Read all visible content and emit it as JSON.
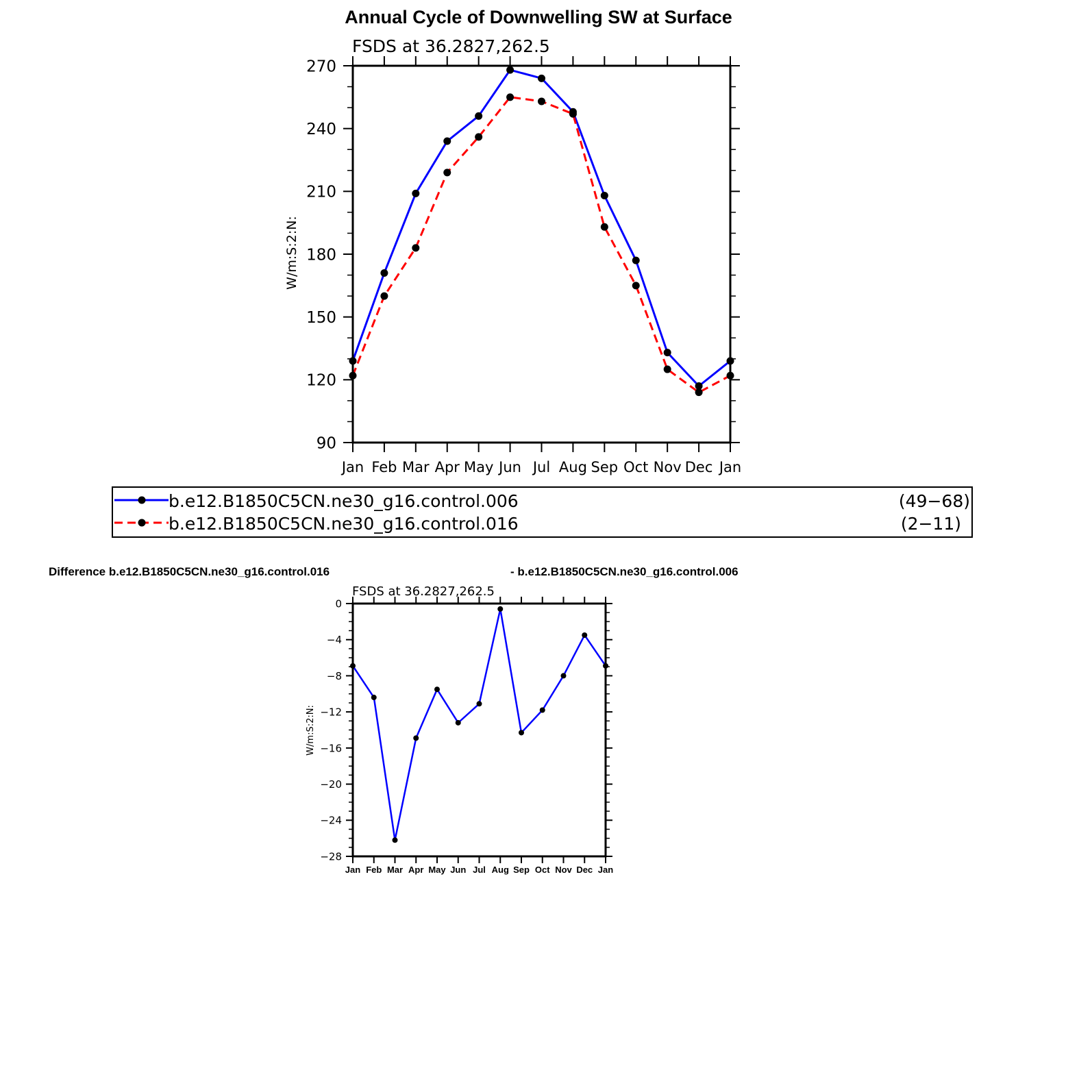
{
  "main_title": "Annual Cycle of Downwelling SW at Surface",
  "colors": {
    "series_a": "#0000ff",
    "series_b": "#ff0000",
    "marker": "#000000"
  },
  "chart_data": [
    {
      "type": "line",
      "subtitle": "FSDS at 36.2827,262.5",
      "ylabel": "W/m:S:2:N:",
      "categories": [
        "Jan",
        "Feb",
        "Mar",
        "Apr",
        "May",
        "Jun",
        "Jul",
        "Aug",
        "Sep",
        "Oct",
        "Nov",
        "Dec",
        "Jan"
      ],
      "ylim": [
        90,
        270
      ],
      "yticks": [
        "90",
        "120",
        "150",
        "180",
        "210",
        "240",
        "270"
      ],
      "series": [
        {
          "name": "b.e12.B1850C5CN.ne30_g16.control.006",
          "years": "(49−68)",
          "color": "#0000ff",
          "dash": "solid",
          "values": [
            129,
            171,
            209,
            234,
            246,
            268,
            264,
            248,
            208,
            177,
            133,
            117,
            129
          ]
        },
        {
          "name": "b.e12.B1850C5CN.ne30_g16.control.016",
          "years": "(2−11)",
          "color": "#ff0000",
          "dash": "dashed",
          "values": [
            122,
            160,
            183,
            219,
            236,
            255,
            253,
            247,
            193,
            165,
            125,
            114,
            122
          ]
        }
      ],
      "legend": "below"
    },
    {
      "type": "line",
      "title_left": "Difference b.e12.B1850C5CN.ne30_g16.control.016",
      "title_right": "- b.e12.B1850C5CN.ne30_g16.control.006",
      "subtitle": "FSDS at 36.2827,262.5",
      "ylabel": "W/m:S:2:N:",
      "categories": [
        "Jan",
        "Feb",
        "Mar",
        "Apr",
        "May",
        "Jun",
        "Jul",
        "Aug",
        "Sep",
        "Oct",
        "Nov",
        "Dec",
        "Jan"
      ],
      "ylim": [
        -28,
        0
      ],
      "yticks": [
        "0",
        "−4",
        "−8",
        "−12",
        "−16",
        "−20",
        "−24",
        "−28"
      ],
      "series": [
        {
          "color": "#0000ff",
          "values": [
            -6.9,
            -10.4,
            -26.2,
            -14.9,
            -9.5,
            -13.2,
            -11.1,
            -0.6,
            -14.3,
            -11.8,
            -8.0,
            -3.5,
            -6.9
          ]
        }
      ]
    }
  ]
}
